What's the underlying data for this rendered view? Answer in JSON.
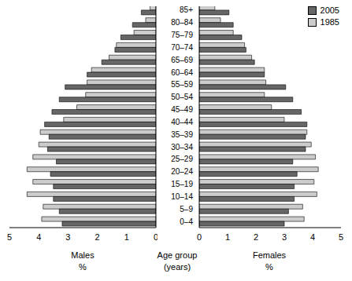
{
  "chart_data": [
    {
      "type": "bar",
      "orientation": "horizontal",
      "x_label": "Males\n%",
      "y_label": "Age group\n(years)",
      "categories": [
        "0–4",
        "5–9",
        "10–14",
        "15–19",
        "20–24",
        "25–29",
        "30–34",
        "35–39",
        "40–44",
        "45–49",
        "50–54",
        "55–59",
        "60–64",
        "65–69",
        "70–74",
        "75–79",
        "80–84",
        "85+"
      ],
      "xlim": [
        5,
        0
      ],
      "xticks": [
        5,
        4,
        3,
        2,
        1,
        0
      ],
      "tick_labels": "x",
      "series": [
        {
          "name": "2005",
          "color": "#666666",
          "values": [
            3.2,
            3.3,
            3.5,
            3.5,
            3.6,
            3.4,
            3.7,
            3.65,
            3.8,
            3.55,
            3.3,
            3.1,
            2.35,
            1.85,
            1.4,
            1.2,
            0.8,
            0.5
          ]
        },
        {
          "name": "1985",
          "color": "#cccccc",
          "values": [
            3.9,
            3.85,
            4.4,
            4.2,
            4.4,
            4.2,
            4.0,
            3.95,
            3.15,
            2.7,
            2.4,
            2.35,
            2.2,
            1.6,
            1.35,
            0.75,
            0.35,
            0.2
          ]
        }
      ]
    },
    {
      "type": "bar",
      "orientation": "horizontal",
      "x_label": "Females\n%",
      "legend": "upper right",
      "categories": [
        "0–4",
        "5–9",
        "10–14",
        "15–19",
        "20–24",
        "25–29",
        "30–34",
        "35–39",
        "40–44",
        "45–49",
        "50–54",
        "55–59",
        "60–64",
        "65–69",
        "70–74",
        "75–79",
        "80–84",
        "85+"
      ],
      "xlim": [
        0,
        5
      ],
      "xticks": [
        0,
        1,
        2,
        3,
        4,
        5
      ],
      "series": [
        {
          "name": "2005",
          "color": "#666666",
          "values": [
            3.0,
            3.15,
            3.35,
            3.35,
            3.45,
            3.3,
            3.75,
            3.75,
            3.8,
            3.6,
            3.3,
            3.05,
            2.3,
            1.95,
            1.65,
            1.5,
            1.2,
            1.05
          ]
        },
        {
          "name": "1985",
          "color": "#cccccc",
          "values": [
            3.7,
            3.65,
            4.15,
            4.05,
            4.2,
            4.1,
            3.95,
            3.8,
            3.0,
            2.55,
            2.3,
            2.35,
            2.3,
            1.85,
            1.6,
            1.2,
            0.75,
            0.55
          ]
        }
      ]
    }
  ]
}
